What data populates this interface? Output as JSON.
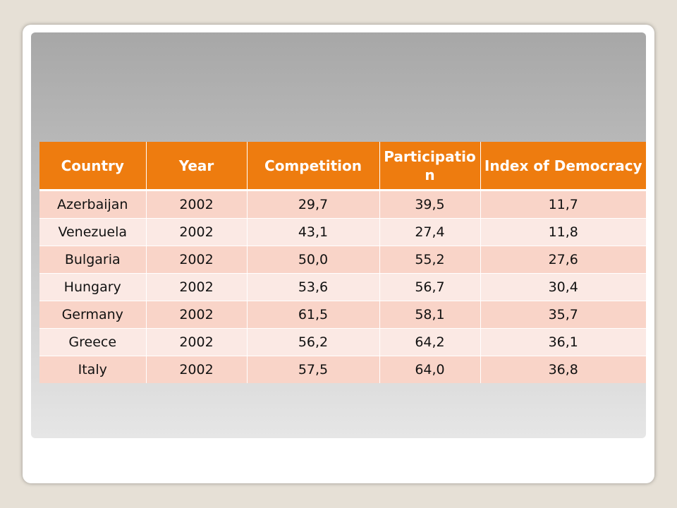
{
  "table": {
    "headers": [
      "Country",
      "Year",
      "Competition",
      "Participat­ion",
      "Index of Democracy"
    ],
    "rows": [
      [
        "Azerbaijan",
        "2002",
        "29,7",
        "39,5",
        "11,7"
      ],
      [
        "Venezuela",
        "2002",
        "43,1",
        "27,4",
        "11,8"
      ],
      [
        "Bulgaria",
        "2002",
        "50,0",
        "55,2",
        "27,6"
      ],
      [
        "Hungary",
        "2002",
        "53,6",
        "56,7",
        "30,4"
      ],
      [
        "Germany",
        "2002",
        "61,5",
        "58,1",
        "35,7"
      ],
      [
        "Greece",
        "2002",
        "56,2",
        "64,2",
        "36,1"
      ],
      [
        "Italy",
        "2002",
        "57,5",
        "64,0",
        "36,8"
      ]
    ]
  },
  "colors": {
    "header_bg": "#ee7c0f",
    "row_odd_bg": "#f9d4c8",
    "row_even_bg": "#fbe9e4"
  }
}
